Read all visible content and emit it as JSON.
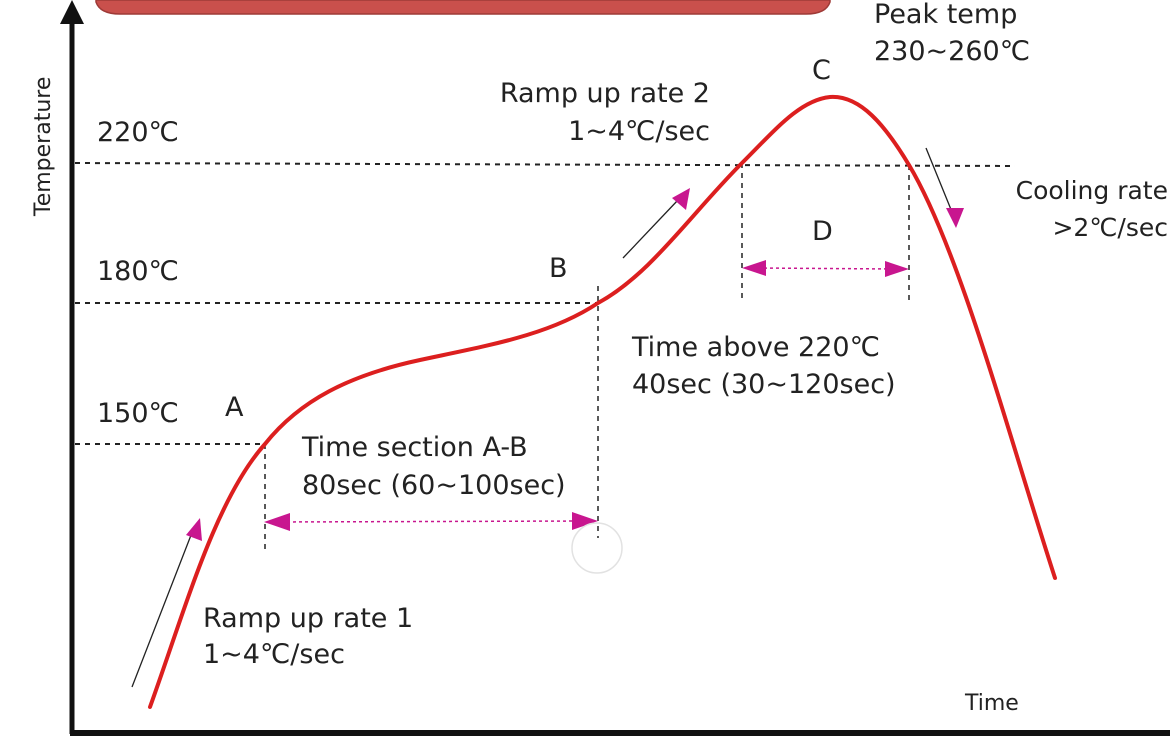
{
  "axes": {
    "y_label": "Temperature",
    "x_label": "Time"
  },
  "levels": [
    {
      "id": "t150",
      "label": "150℃"
    },
    {
      "id": "t180",
      "label": "180℃"
    },
    {
      "id": "t220",
      "label": "220℃"
    }
  ],
  "points": {
    "A": "A",
    "B": "B",
    "C": "C",
    "D": "D"
  },
  "annotations": {
    "ramp1_line1": "Ramp up rate 1",
    "ramp1_line2": "1~4℃/sec",
    "soak_line1": "Time section A-B",
    "soak_line2": "80sec (60~100sec)",
    "ramp2_line1": "Ramp up rate 2",
    "ramp2_line2": "1~4℃/sec",
    "above_line1": "Time above 220℃",
    "above_line2": "40sec  (30~120sec)",
    "peak_line1": "Peak temp",
    "peak_line2": "230~260℃",
    "cool_line1": "Cooling rate",
    "cool_line2": ">2℃/sec"
  },
  "colors": {
    "curve": "#dc1f1f",
    "arrow": "#c8168f",
    "banner": "#c9504c",
    "axis": "#111111"
  }
}
